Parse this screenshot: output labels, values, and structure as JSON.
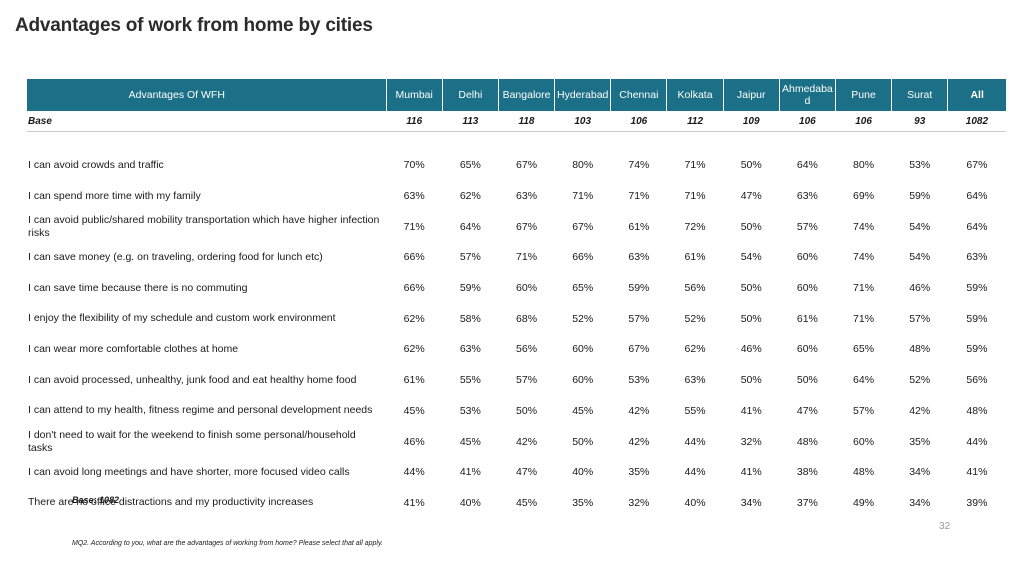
{
  "title": "Advantages of work from home by cities",
  "header": {
    "label": "Advantages Of WFH",
    "cities": [
      "Mumbai",
      "Delhi",
      "Bangalore",
      "Hyderabad",
      "Chennai",
      "Kolkata",
      "Jaipur",
      "Ahmedaba d",
      "Pune",
      "Surat",
      "All"
    ]
  },
  "base_row": {
    "label": "Base",
    "values": [
      "116",
      "113",
      "118",
      "103",
      "106",
      "112",
      "109",
      "106",
      "106",
      "93",
      "1082"
    ]
  },
  "rows": [
    {
      "label": "I can avoid crowds and traffic",
      "values": [
        "70%",
        "65%",
        "67%",
        "80%",
        "74%",
        "71%",
        "50%",
        "64%",
        "80%",
        "53%",
        "67%"
      ]
    },
    {
      "label": "I can spend more time with my family",
      "values": [
        "63%",
        "62%",
        "63%",
        "71%",
        "71%",
        "71%",
        "47%",
        "63%",
        "69%",
        "59%",
        "64%"
      ]
    },
    {
      "label": "I can avoid public/shared mobility transportation which have higher infection risks",
      "values": [
        "71%",
        "64%",
        "67%",
        "67%",
        "61%",
        "72%",
        "50%",
        "57%",
        "74%",
        "54%",
        "64%"
      ]
    },
    {
      "label": "I can save money (e.g. on traveling, ordering food for lunch etc)",
      "values": [
        "66%",
        "57%",
        "71%",
        "66%",
        "63%",
        "61%",
        "54%",
        "60%",
        "74%",
        "54%",
        "63%"
      ]
    },
    {
      "label": "I can save time because there is no commuting",
      "values": [
        "66%",
        "59%",
        "60%",
        "65%",
        "59%",
        "56%",
        "50%",
        "60%",
        "71%",
        "46%",
        "59%"
      ]
    },
    {
      "label": "I enjoy the flexibility of my schedule and custom work environment",
      "values": [
        "62%",
        "58%",
        "68%",
        "52%",
        "57%",
        "52%",
        "50%",
        "61%",
        "71%",
        "57%",
        "59%"
      ]
    },
    {
      "label": "I can wear more comfortable clothes at home",
      "values": [
        "62%",
        "63%",
        "56%",
        "60%",
        "67%",
        "62%",
        "46%",
        "60%",
        "65%",
        "48%",
        "59%"
      ]
    },
    {
      "label": "I can avoid processed, unhealthy, junk food and eat healthy home food",
      "values": [
        "61%",
        "55%",
        "57%",
        "60%",
        "53%",
        "63%",
        "50%",
        "50%",
        "64%",
        "52%",
        "56%"
      ]
    },
    {
      "label": "I can attend to my health, fitness regime and personal development needs",
      "values": [
        "45%",
        "53%",
        "50%",
        "45%",
        "42%",
        "55%",
        "41%",
        "47%",
        "57%",
        "42%",
        "48%"
      ]
    },
    {
      "label": "I don't need to wait for the weekend to finish some personal/household tasks",
      "values": [
        "46%",
        "45%",
        "42%",
        "50%",
        "42%",
        "44%",
        "32%",
        "48%",
        "60%",
        "35%",
        "44%"
      ]
    },
    {
      "label": "I can avoid long meetings and have shorter, more focused video calls",
      "values": [
        "44%",
        "41%",
        "47%",
        "40%",
        "35%",
        "44%",
        "41%",
        "38%",
        "48%",
        "34%",
        "41%"
      ]
    },
    {
      "label": "There are no office distractions and my productivity increases",
      "values": [
        "41%",
        "40%",
        "45%",
        "35%",
        "32%",
        "40%",
        "34%",
        "37%",
        "49%",
        "34%",
        "39%"
      ]
    }
  ],
  "base_note": "Base: 1082",
  "page_number": "32",
  "footnote": "MQ2. According to you, what are the advantages of working from home? Please select that all apply.",
  "colors": {
    "header_bg": "#1b6f86",
    "header_text": "#ffffff"
  }
}
